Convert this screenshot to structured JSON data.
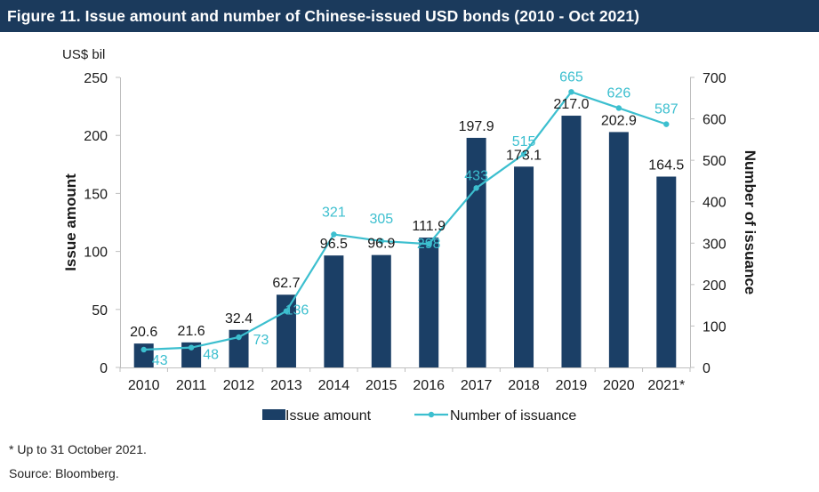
{
  "title": "Figure 11.  Issue amount and number of Chinese-issued USD bonds (2010 - Oct 2021)",
  "colors": {
    "title_bg": "#1b3a5c",
    "bar": "#1b3f66",
    "line": "#3cbfcf",
    "axis": "#bfbfbf"
  },
  "footnotes": {
    "note": "* Up to 31 October 2021.",
    "source": "Source: Bloomberg."
  },
  "chart_data": {
    "type": "bar+line",
    "unit_label": "US$ bil",
    "categories": [
      "2010",
      "2011",
      "2012",
      "2013",
      "2014",
      "2015",
      "2016",
      "2017",
      "2018",
      "2019",
      "2020",
      "2021*"
    ],
    "series": [
      {
        "name": "Issue amount",
        "type": "bar",
        "axis": "left",
        "values": [
          20.6,
          21.6,
          32.4,
          62.7,
          96.5,
          96.9,
          111.9,
          197.9,
          173.1,
          217.0,
          202.9,
          164.5
        ],
        "labels": [
          "20.6",
          "21.6",
          "32.4",
          "62.7",
          "96.5",
          "96.9",
          "111.9",
          "197.9",
          "173.1",
          "217.0",
          "202.9",
          "164.5"
        ]
      },
      {
        "name": "Number of issuance",
        "type": "line",
        "axis": "right",
        "values": [
          43,
          48,
          73,
          136,
          321,
          305,
          298,
          433,
          515,
          665,
          626,
          587
        ],
        "labels": [
          "43",
          "48",
          "73",
          "136",
          "321",
          "305",
          "298",
          "433",
          "515",
          "665",
          "626",
          "587"
        ]
      }
    ],
    "ylabel": "Issue amount",
    "y2label": "Number of issuance",
    "ylim": [
      0,
      250
    ],
    "yticks": [
      0,
      50,
      100,
      150,
      200,
      250
    ],
    "y2lim": [
      0,
      700
    ],
    "y2ticks": [
      0,
      100,
      200,
      300,
      400,
      500,
      600,
      700
    ],
    "grid": false,
    "legend": "bottom"
  }
}
